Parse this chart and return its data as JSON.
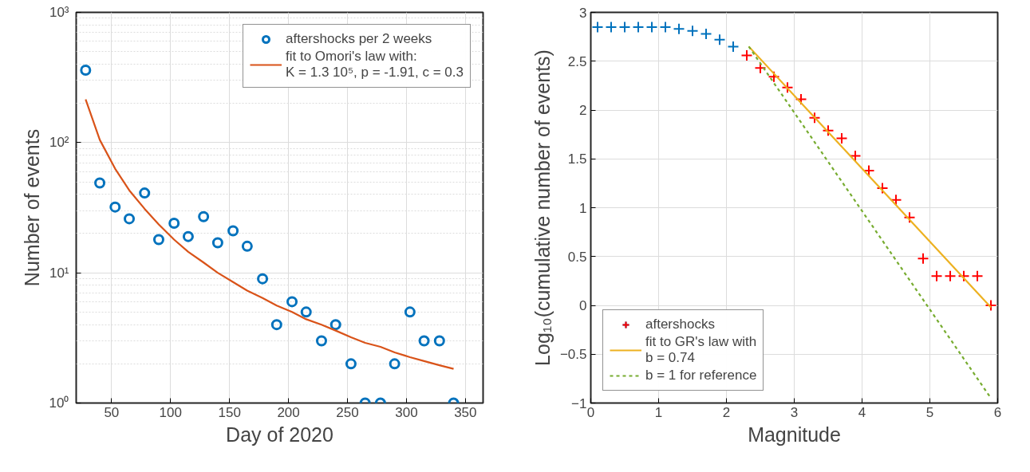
{
  "chart_data": [
    {
      "type": "scatter",
      "xlabel": "Day of 2020",
      "ylabel": "Number of events",
      "log": "y",
      "grid": true,
      "legend": "top right",
      "xlim": [
        20,
        365
      ],
      "xticks": [
        50,
        100,
        150,
        200,
        250,
        300,
        350
      ],
      "ylim": [
        1,
        1000
      ],
      "yticks": [
        {
          "value": 1,
          "label": "10⁰"
        },
        {
          "value": 10,
          "label": "10¹"
        },
        {
          "value": 100,
          "label": "10²"
        },
        {
          "value": 1000,
          "label": "10³"
        }
      ],
      "x": [
        28,
        40,
        53,
        65,
        78,
        90,
        103,
        115,
        128,
        140,
        153,
        165,
        178,
        190,
        203,
        215,
        228,
        240,
        253,
        265,
        278,
        290,
        303,
        315,
        328,
        340
      ],
      "series": [
        {
          "name": "aftershocks per 2 weeks",
          "marker": "circle",
          "color": "#0072bd",
          "values": [
            360,
            49,
            32,
            26,
            41,
            18,
            24,
            19,
            27,
            17,
            21,
            16,
            9,
            4,
            6,
            5,
            3,
            4,
            2,
            1,
            1,
            2,
            5,
            3,
            3,
            1
          ]
        },
        {
          "name": "fit to Omori's law with:\nK = 1.3 10⁵, p = -1.91, c = 0.3",
          "type": "line",
          "line_style": "solid",
          "color": "#d95319",
          "values": [
            215,
            105,
            63,
            43,
            31,
            23.5,
            18,
            14.5,
            12,
            10,
            8.5,
            7.3,
            6.4,
            5.6,
            5,
            4.4,
            4,
            3.6,
            3.2,
            2.9,
            2.7,
            2.45,
            2.25,
            2.1,
            1.95,
            1.83
          ]
        }
      ]
    },
    {
      "type": "scatter",
      "xlabel": "Magnitude",
      "ylabel": "Log₁₀(cumulative number of events)",
      "grid": true,
      "legend": "bottom left",
      "xlim": [
        0,
        6
      ],
      "xticks": [
        0,
        1,
        2,
        3,
        4,
        5,
        6
      ],
      "ylim": [
        -1,
        3
      ],
      "yticks": [
        -1,
        -0.5,
        0,
        0.5,
        1,
        1.5,
        2,
        2.5,
        3
      ],
      "series": [
        {
          "name": "aftershocks",
          "marker": "cross",
          "color": "#0072bd",
          "x": [
            0.1,
            0.3,
            0.5,
            0.7,
            0.9,
            1.1,
            1.3,
            1.5,
            1.7,
            1.9,
            2.1
          ],
          "values": [
            2.85,
            2.85,
            2.85,
            2.85,
            2.85,
            2.85,
            2.83,
            2.81,
            2.78,
            2.72,
            2.65
          ]
        },
        {
          "marker": "cross",
          "color": "#ff0000",
          "x": [
            2.3,
            2.5,
            2.7,
            2.9,
            3.1,
            3.3,
            3.5,
            3.7,
            3.9,
            4.1,
            4.3,
            4.5,
            4.7,
            4.9,
            5.1,
            5.3,
            5.5,
            5.7,
            5.9
          ],
          "values": [
            2.56,
            2.43,
            2.34,
            2.23,
            2.11,
            1.92,
            1.79,
            1.71,
            1.53,
            1.38,
            1.2,
            1.08,
            0.9,
            0.48,
            0.3,
            0.3,
            0.3,
            0.3,
            0.0
          ]
        },
        {
          "name": "fit to GR's law with\nb = 0.74",
          "type": "line",
          "line_style": "solid",
          "color": "#edb120",
          "x": [
            2.33,
            5.9
          ],
          "values": [
            2.65,
            -0.02
          ]
        },
        {
          "name": "b = 1 for reference",
          "type": "line",
          "line_style": "dotted",
          "color": "#77ac30",
          "x": [
            2.33,
            5.9
          ],
          "values": [
            2.65,
            -0.95
          ]
        }
      ]
    }
  ]
}
